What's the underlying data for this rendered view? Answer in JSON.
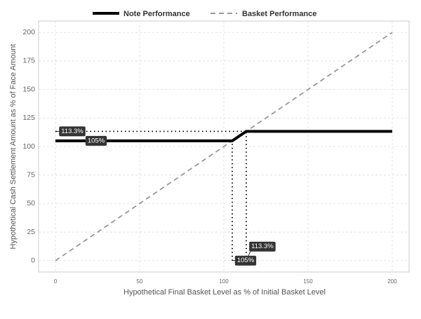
{
  "chart_data": {
    "type": "line",
    "x_label": "Hypothetical Final Basket Level as % of Initial Basket Level",
    "y_label": "Hypothetical Cash Settlement Amount as % of Face Amount",
    "series": [
      {
        "name": "Note Performance",
        "color": "#000000",
        "style": "solid",
        "x": [
          0,
          105,
          113.3,
          200
        ],
        "values": [
          105,
          105,
          113.3,
          113.3
        ]
      },
      {
        "name": "Basket Performance",
        "color": "#999999",
        "style": "dashed",
        "x": [
          0,
          200
        ],
        "values": [
          0,
          200
        ]
      }
    ],
    "reference_lines": [
      {
        "x": [
          0,
          113.3
        ],
        "y": [
          113.3,
          113.3
        ]
      },
      {
        "x": [
          0,
          105
        ],
        "y": [
          105,
          105
        ]
      },
      {
        "x": [
          113.3,
          113.3
        ],
        "y": [
          0,
          113.3
        ]
      },
      {
        "x": [
          105,
          105
        ],
        "y": [
          0,
          105
        ]
      }
    ],
    "annotations": [
      {
        "label": "113.3%",
        "x": 0,
        "y": 113.3
      },
      {
        "label": "105%",
        "x": 0,
        "y": 105
      },
      {
        "label": "113.3%",
        "x": 113.3,
        "y": 0
      },
      {
        "label": "105%",
        "x": 105,
        "y": 0
      }
    ],
    "xlim": [
      -10,
      210
    ],
    "ylim": [
      -10,
      210
    ],
    "xticks": [
      0,
      50,
      100,
      150,
      200
    ],
    "yticks": [
      0,
      25,
      50,
      75,
      100,
      125,
      150,
      175,
      200
    ],
    "grid": true,
    "legend": "top"
  }
}
